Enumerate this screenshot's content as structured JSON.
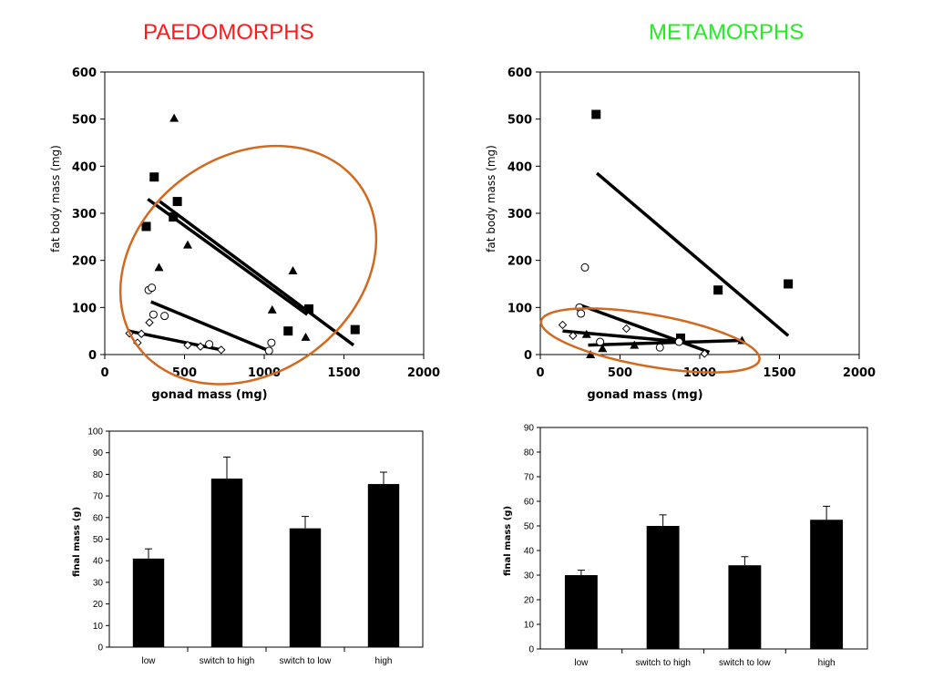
{
  "titles": {
    "left": "PAEDOMORPHS",
    "right": "METAMORPHS",
    "left_color": "#ff1a1a",
    "right_color": "#22ee22"
  },
  "chart_data": [
    {
      "id": "paedo-scatter",
      "type": "scatter",
      "xlabel": "gonad mass (mg)",
      "ylabel": "fat body mass (mg)",
      "xlim": [
        0,
        2000
      ],
      "ylim": [
        0,
        600
      ],
      "xticks": [
        0,
        500,
        1000,
        1500,
        2000
      ],
      "yticks": [
        0,
        100,
        200,
        300,
        400,
        500,
        600
      ],
      "ellipse_color": "#d2691e",
      "series": [
        {
          "marker": "square",
          "points": [
            [
              260,
              272
            ],
            [
              310,
              377
            ],
            [
              430,
              292
            ],
            [
              455,
              325
            ],
            [
              1150,
              50
            ],
            [
              1280,
              97
            ],
            [
              1570,
              53
            ]
          ]
        },
        {
          "marker": "triangle",
          "points": [
            [
              340,
              185
            ],
            [
              435,
              502
            ],
            [
              520,
              233
            ],
            [
              1050,
              95
            ],
            [
              1180,
              178
            ],
            [
              1260,
              37
            ]
          ]
        },
        {
          "marker": "circle",
          "points": [
            [
              275,
              137
            ],
            [
              295,
              142
            ],
            [
              305,
              85
            ],
            [
              375,
              82
            ],
            [
              655,
              22
            ],
            [
              1030,
              8
            ],
            [
              1045,
              25
            ]
          ]
        },
        {
          "marker": "diamond",
          "points": [
            [
              155,
              45
            ],
            [
              205,
              25
            ],
            [
              230,
              44
            ],
            [
              280,
              68
            ],
            [
              520,
              20
            ],
            [
              600,
              17
            ],
            [
              730,
              10
            ]
          ]
        }
      ],
      "lines": [
        [
          [
            270,
            330
          ],
          [
            1270,
            85
          ]
        ],
        [
          [
            345,
            325
          ],
          [
            1560,
            20
          ]
        ],
        [
          [
            290,
            112
          ],
          [
            1030,
            8
          ]
        ],
        [
          [
            150,
            50
          ],
          [
            730,
            10
          ]
        ]
      ],
      "ellipses": [
        {
          "center": [
            900,
            190
          ],
          "tilt_deg": -36,
          "semi_axes_x": [
            860,
            230
          ]
        }
      ]
    },
    {
      "id": "meta-scatter",
      "type": "scatter",
      "xlabel": "gonad mass (mg)",
      "ylabel": "fat body mass (mg)",
      "xlim": [
        0,
        2000
      ],
      "ylim": [
        0,
        600
      ],
      "xticks": [
        0,
        500,
        1000,
        1500,
        2000
      ],
      "yticks": [
        0,
        100,
        200,
        300,
        400,
        500,
        600
      ],
      "ellipse_color": "#d2691e",
      "series": [
        {
          "marker": "square",
          "points": [
            [
              350,
              510
            ],
            [
              880,
              35
            ],
            [
              1115,
              137
            ],
            [
              1555,
              150
            ]
          ]
        },
        {
          "marker": "triangle",
          "points": [
            [
              290,
              43
            ],
            [
              315,
              0
            ],
            [
              390,
              13
            ],
            [
              590,
              20
            ],
            [
              1265,
              30
            ]
          ]
        },
        {
          "marker": "circle",
          "points": [
            [
              245,
              100
            ],
            [
              255,
              87
            ],
            [
              280,
              185
            ],
            [
              375,
              27
            ],
            [
              750,
              15
            ],
            [
              870,
              27
            ]
          ]
        },
        {
          "marker": "diamond",
          "points": [
            [
              140,
              63
            ],
            [
              205,
              40
            ],
            [
              540,
              55
            ],
            [
              1030,
              2
            ]
          ]
        }
      ],
      "lines": [
        [
          [
            355,
            385
          ],
          [
            1555,
            40
          ]
        ],
        [
          [
            250,
            105
          ],
          [
            1060,
            5
          ]
        ],
        [
          [
            140,
            50
          ],
          [
            860,
            28
          ]
        ],
        [
          [
            300,
            20
          ],
          [
            1260,
            30
          ]
        ]
      ],
      "ellipses": [
        {
          "center": [
            690,
            30
          ],
          "tilt_deg": 10,
          "semi_axes_x": [
            695,
            55
          ]
        }
      ]
    },
    {
      "id": "paedo-bar",
      "type": "bar",
      "ylabel": "final mass (g)",
      "ylim": [
        0,
        100
      ],
      "yticks": [
        0,
        10,
        20,
        30,
        40,
        50,
        60,
        70,
        80,
        90,
        100
      ],
      "categories": [
        "low",
        "switch to high",
        "switch to low",
        "high"
      ],
      "values": [
        41,
        78,
        55,
        75.5
      ],
      "errors": [
        4.5,
        10,
        5.5,
        5.5
      ]
    },
    {
      "id": "meta-bar",
      "type": "bar",
      "ylabel": "final mass (g)",
      "ylim": [
        0,
        90
      ],
      "yticks": [
        0,
        10,
        20,
        30,
        40,
        50,
        60,
        70,
        80,
        90
      ],
      "categories": [
        "low",
        "switch to high",
        "switch to low",
        "high"
      ],
      "values": [
        30,
        50,
        34,
        52.5
      ],
      "errors": [
        2,
        4.5,
        3.5,
        5.5
      ]
    }
  ]
}
